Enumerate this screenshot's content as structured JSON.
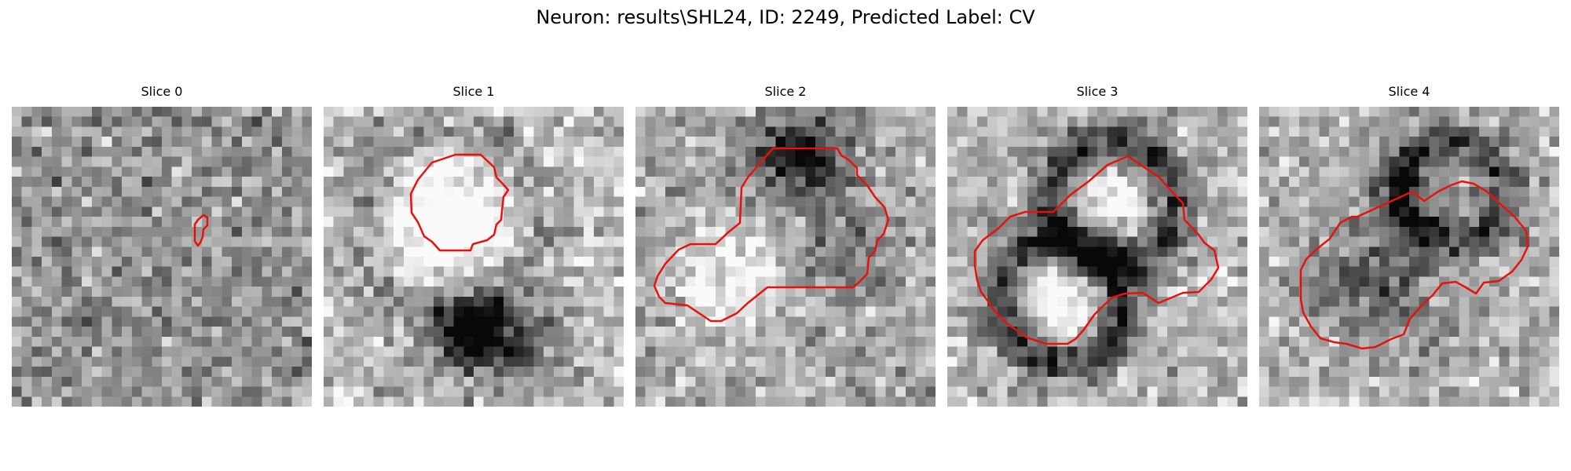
{
  "figure": {
    "title": "Neuron: results\\SHL24, ID: 2249, Predicted Label: CV",
    "outline_color": "#e8120c",
    "image_grid_size": 30,
    "colormap": "gray"
  },
  "slices": [
    {
      "title": "Slice 0",
      "contrast": 0.55,
      "features": []
    },
    {
      "title": "Slice 1",
      "contrast": 0.85,
      "features": [
        "bright-ring",
        "dark-blob-bottom"
      ]
    },
    {
      "title": "Slice 2",
      "contrast": 0.8,
      "features": [
        "dark-blob-top-right",
        "bright-lobe-bottom-left"
      ]
    },
    {
      "title": "Slice 3",
      "contrast": 0.85,
      "features": [
        "dark-double-ring"
      ]
    },
    {
      "title": "Slice 4",
      "contrast": 0.8,
      "features": [
        "dark-double-ring"
      ]
    }
  ]
}
